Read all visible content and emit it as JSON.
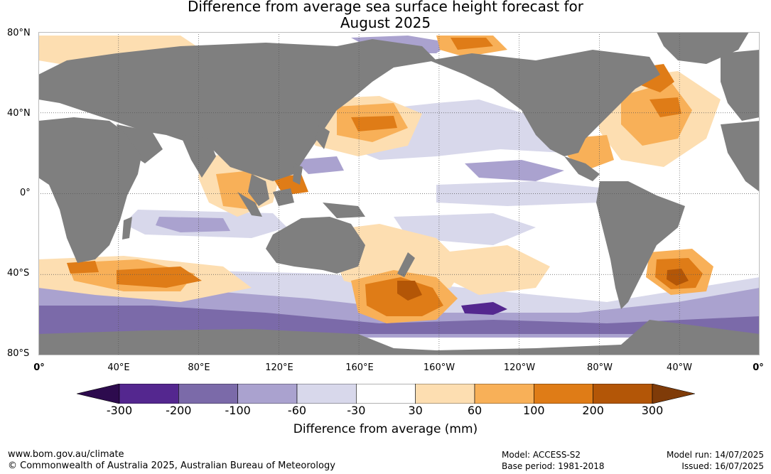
{
  "title_line1": "Difference from average sea surface height forecast for",
  "title_line2": "August 2025",
  "lat_labels": [
    "80°N",
    "40°N",
    "0°",
    "40°S",
    "80°S"
  ],
  "lon_labels": [
    "0°",
    "40°E",
    "80°E",
    "120°E",
    "160°E",
    "160°W",
    "120°W",
    "80°W",
    "40°W",
    "0°"
  ],
  "colorbar": {
    "ticks": [
      "-300",
      "-200",
      "-100",
      "-60",
      "-30",
      "30",
      "60",
      "100",
      "200",
      "300"
    ],
    "colors": [
      "#2d0b4e",
      "#54278f",
      "#7b6aa9",
      "#aaa2cf",
      "#d8d8eb",
      "#ffffff",
      "#fddeb1",
      "#f8b058",
      "#df7c17",
      "#b35607",
      "#7f3b08"
    ],
    "label": "Difference from average (mm)"
  },
  "footer": {
    "url": "www.bom.gov.au/climate",
    "copyright": "© Commonwealth of Australia 2025, Australian Bureau of Meteorology",
    "model": "Model: ACCESS-S2",
    "base_period": "Base period: 1981-2018",
    "model_run": "Model run: 14/07/2025",
    "issued": "Issued: 16/07/2025"
  },
  "colors": {
    "land": "#7f7f7f",
    "ocean_default": "#ffffff",
    "grid": "#555555"
  }
}
